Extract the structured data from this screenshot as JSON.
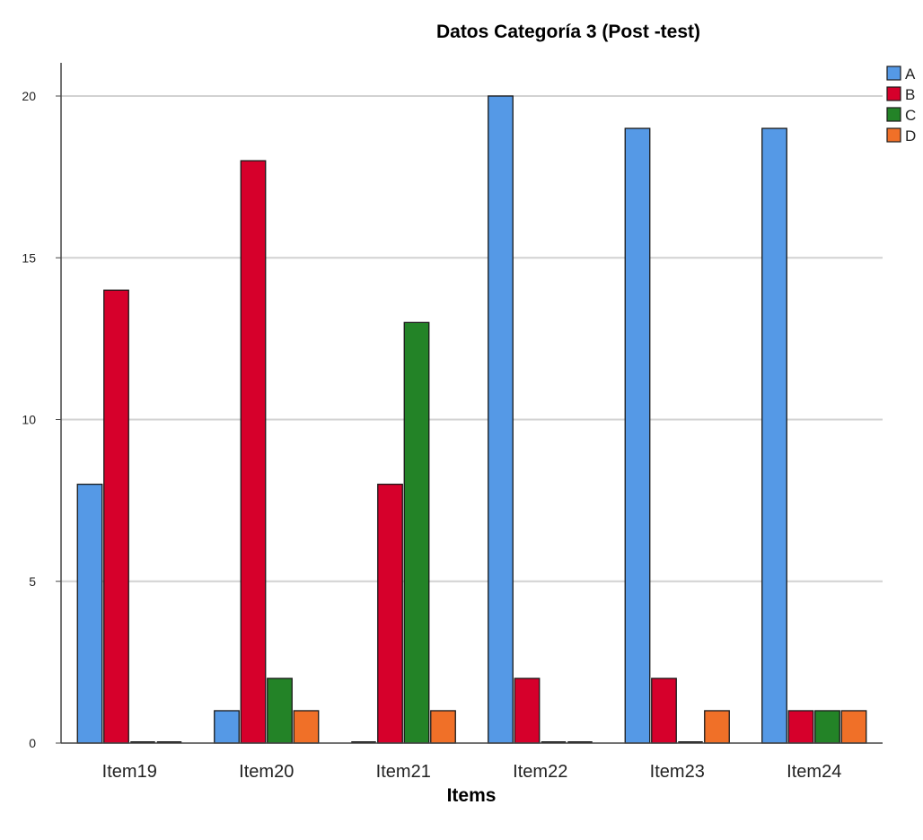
{
  "chart_data": {
    "type": "bar",
    "title": "Datos Categoría 3 (Post -test)",
    "xlabel": "Items",
    "ylabel": "",
    "categories": [
      "Item19",
      "Item20",
      "Item21",
      "Item22",
      "Item23",
      "Item24"
    ],
    "series": [
      {
        "name": "A",
        "color": "#5599e6",
        "values": [
          8,
          1,
          0,
          20,
          19,
          19
        ]
      },
      {
        "name": "B",
        "color": "#d6002b",
        "values": [
          14,
          18,
          8,
          2,
          2,
          1
        ]
      },
      {
        "name": "C",
        "color": "#238327",
        "values": [
          0,
          2,
          13,
          0,
          0,
          1
        ]
      },
      {
        "name": "D",
        "color": "#f07028",
        "values": [
          0,
          1,
          1,
          0,
          1,
          1
        ]
      }
    ],
    "ylim": [
      0,
      21
    ],
    "yticks": [
      0,
      5,
      10,
      15,
      20
    ],
    "grid": true,
    "legend_position": "top-right"
  }
}
